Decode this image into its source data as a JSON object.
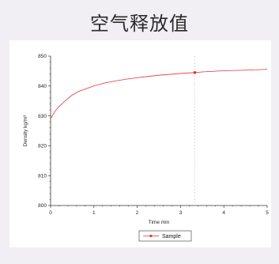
{
  "page": {
    "title": "空气释放值"
  },
  "chart_data": {
    "type": "line",
    "xlabel": "Time min",
    "ylabel": "Density kg/m³",
    "xlim": [
      0,
      5
    ],
    "ylim": [
      800,
      850
    ],
    "x_ticks": [
      "0",
      "1",
      "2",
      "3",
      "4",
      "5"
    ],
    "y_ticks": [
      "800",
      "810",
      "820",
      "830",
      "840",
      "850"
    ],
    "grid": false,
    "legend": "bottom-center",
    "colors": {
      "series": "#e8303a",
      "marker_line": "#c8c8c8"
    },
    "marker": {
      "x": 3.33,
      "y": 844.5
    },
    "series": [
      {
        "name": "Sample",
        "x": [
          0,
          0.1,
          0.2,
          0.35,
          0.5,
          0.65,
          0.8,
          1.0,
          1.25,
          1.5,
          1.75,
          2.0,
          2.25,
          2.5,
          2.75,
          3.0,
          3.33,
          3.5,
          3.75,
          4.0,
          4.25,
          4.5,
          4.75,
          5.0
        ],
        "values": [
          829.0,
          831.5,
          833.2,
          835.2,
          837.0,
          838.2,
          839.0,
          840.0,
          841.0,
          841.7,
          842.3,
          842.8,
          843.2,
          843.6,
          843.9,
          844.2,
          844.5,
          844.7,
          844.9,
          845.1,
          845.2,
          845.3,
          845.4,
          845.6
        ]
      }
    ]
  }
}
